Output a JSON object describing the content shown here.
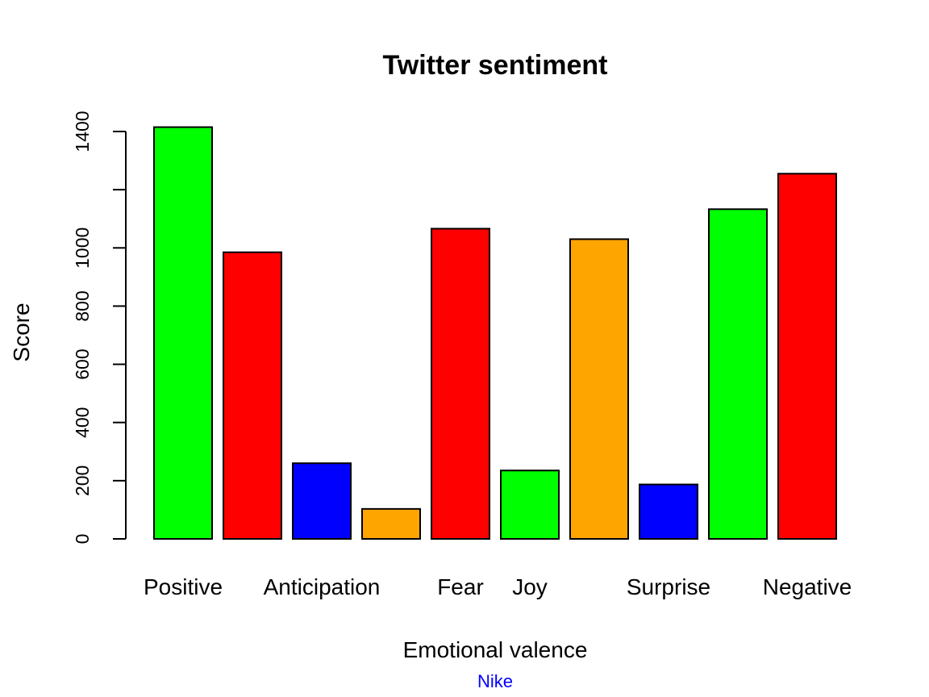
{
  "chart_data": {
    "type": "bar",
    "title": "Twitter sentiment",
    "xlabel": "Emotional valence",
    "ylabel": "Score",
    "subtitle": "Nike",
    "ylim": [
      0,
      1400
    ],
    "yticks": [
      "0",
      "200",
      "400",
      "600",
      "800",
      "1000",
      "1400"
    ],
    "yticks_marks": [
      0,
      200,
      400,
      600,
      800,
      1000,
      1200,
      1400
    ],
    "grid": false,
    "categories": [
      "Positive",
      "",
      "Anticipation",
      "",
      "Fear",
      "Joy",
      "",
      "Surprise",
      "",
      "Negative"
    ],
    "values": [
      1415,
      985,
      260,
      103,
      1066,
      235,
      1030,
      187,
      1133,
      1255
    ],
    "colors": [
      "#00FF00",
      "#FF0000",
      "#0000FF",
      "#FFA500",
      "#FF0000",
      "#00FF00",
      "#FFA500",
      "#0000FF",
      "#00FF00",
      "#FF0000"
    ],
    "subtitle_color": "#0000FF"
  }
}
